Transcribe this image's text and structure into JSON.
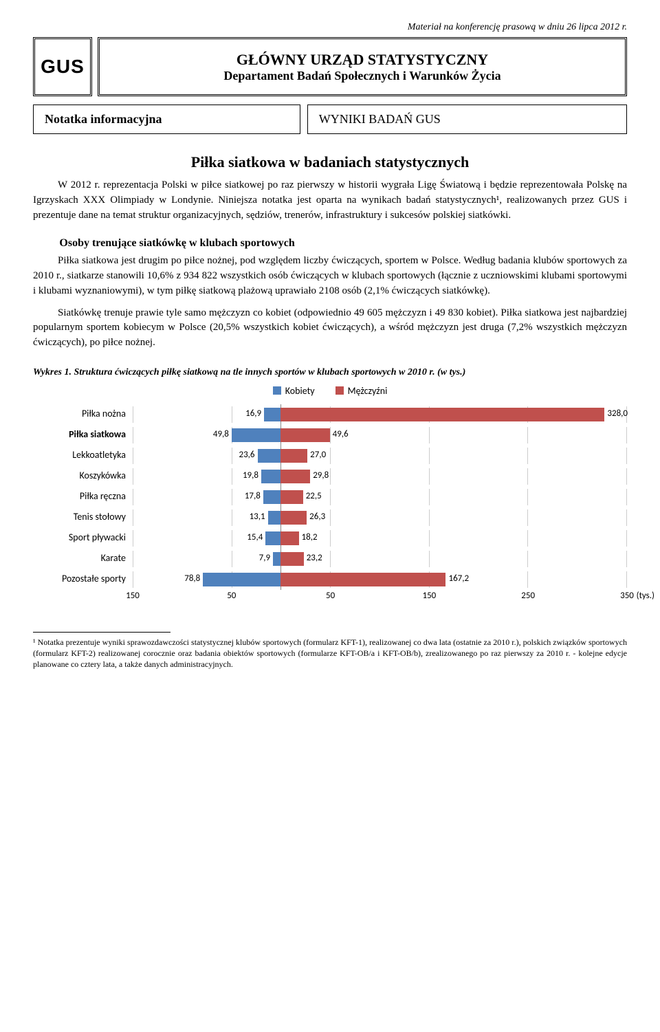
{
  "meta_line": "Materiał na konferencję prasową w dniu 26 lipca 2012 r.",
  "logo_text": "GUS",
  "org": {
    "line1": "GŁÓWNY URZĄD STATYSTYCZNY",
    "line2": "Departament Badań Społecznych i Warunków Życia"
  },
  "boxes": {
    "left": "Notatka informacyjna",
    "right": "WYNIKI BADAŃ GUS"
  },
  "title": "Piłka siatkowa w badaniach statystycznych",
  "intro": "W 2012 r. reprezentacja Polski w piłce siatkowej po raz pierwszy w historii wygrała Ligę Światową i będzie reprezentowała Polskę na Igrzyskach XXX Olimpiady w Londynie. Niniejsza notatka jest oparta na wynikach badań statystycznych¹, realizowanych przez GUS i prezentuje dane na temat struktur organizacyjnych, sędziów, trenerów, infrastruktury i sukcesów polskiej siatkówki.",
  "section1_head": "Osoby trenujące siatkówkę w klubach sportowych",
  "section1_p1": "Piłka siatkowa jest drugim po piłce nożnej, pod względem liczby ćwiczących, sportem w Polsce. Według badania klubów sportowych za 2010 r., siatkarze stanowili 10,6% z 934 822 wszystkich osób ćwiczących w klubach sportowych (łącznie z uczniowskimi klubami sportowymi i klubami wyznaniowymi), w tym piłkę siatkową plażową uprawiało 2108 osób (2,1% ćwiczących siatkówkę).",
  "section1_p2": "Siatkówkę trenuje prawie tyle samo mężczyzn co kobiet (odpowiednio 49 605 mężczyzn i 49 830 kobiet). Piłka siatkowa jest najbardziej popularnym sportem kobiecym w Polsce (20,5% wszystkich kobiet ćwiczących), a wśród mężczyzn jest druga (7,2% wszystkich mężczyzn ćwiczących), po piłce nożnej.",
  "chart_caption": "Wykres 1. Struktura ćwiczących piłkę siatkową na tle innych sportów w klubach sportowych w 2010 r. (w tys.)",
  "chart": {
    "legend_k": "Kobiety",
    "legend_m": "Mężczyźni",
    "color_k": "#4f81bd",
    "color_m": "#c0504d",
    "grid_color": "#cccccc",
    "x_min": -150,
    "x_max": 350,
    "ticks": [
      -150,
      -50,
      50,
      150,
      250,
      350
    ],
    "tick_labels": [
      "150",
      "50",
      "50",
      "150",
      "250",
      "350"
    ],
    "unit": "(tys.)",
    "categories": [
      {
        "label": "Piłka nożna",
        "bold": false,
        "k": 16.9,
        "m": 328.0
      },
      {
        "label": "Piłka siatkowa",
        "bold": true,
        "k": 49.8,
        "m": 49.6
      },
      {
        "label": "Lekkoatletyka",
        "bold": false,
        "k": 23.6,
        "m": 27.0
      },
      {
        "label": "Koszykówka",
        "bold": false,
        "k": 19.8,
        "m": 29.8
      },
      {
        "label": "Piłka ręczna",
        "bold": false,
        "k": 17.8,
        "m": 22.5
      },
      {
        "label": "Tenis stołowy",
        "bold": false,
        "k": 13.1,
        "m": 26.3
      },
      {
        "label": "Sport pływacki",
        "bold": false,
        "k": 15.4,
        "m": 18.2
      },
      {
        "label": "Karate",
        "bold": false,
        "k": 7.9,
        "m": 23.2
      },
      {
        "label": "Pozostałe sporty",
        "bold": false,
        "k": 78.8,
        "m": 167.2
      }
    ]
  },
  "footnote": "¹ Notatka prezentuje wyniki sprawozdawczości statystycznej klubów sportowych (formularz KFT-1), realizowanej co dwa lata (ostatnie za 2010 r.), polskich związków sportowych (formularz KFT-2) realizowanej corocznie oraz badania obiektów sportowych (formularze KFT-OB/a i KFT-OB/b), zrealizowanego po raz pierwszy za 2010 r. - kolejne edycje planowane co cztery lata, a także danych administracyjnych."
}
